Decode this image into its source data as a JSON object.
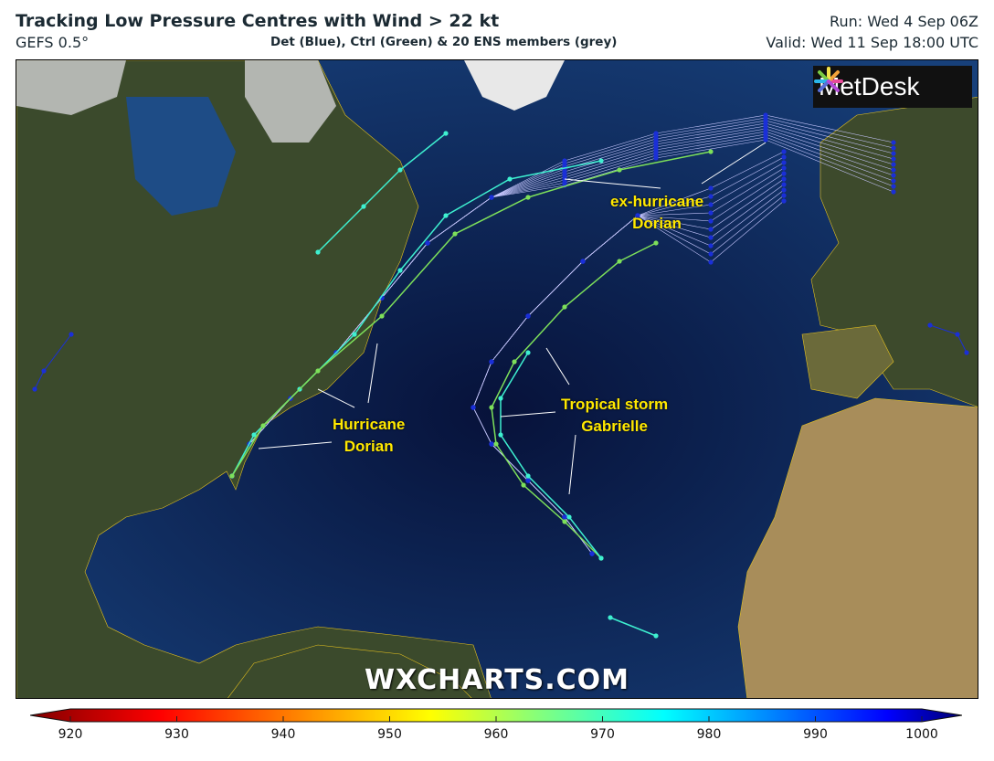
{
  "header": {
    "title": "Tracking Low Pressure Centres with Wind > 22 kt",
    "model": "GEFS 0.5°",
    "subtitle": "Det (Blue), Ctrl (Green) & 20 ENS members (grey)",
    "run": "Run: Wed 4 Sep 06Z",
    "valid": "Valid: Wed 11 Sep 18:00 UTC"
  },
  "map": {
    "annotations": [
      {
        "line1": "ex-hurricane",
        "line2": "Dorian"
      },
      {
        "line1": "Hurricane",
        "line2": "Dorian"
      },
      {
        "line1": "Tropical storm",
        "line2": "Gabrielle"
      }
    ],
    "logo": "MetDesk",
    "watermark": "WXCHARTS.COM",
    "colors": {
      "ocean": "#0a1a4a",
      "land": "#3d4a2a",
      "desert": "#a88d5a",
      "ice": "#d8d8d8",
      "borders": "#e6c21f",
      "label": "#ffe800"
    }
  },
  "colorbar": {
    "ticks": [
      "920",
      "930",
      "940",
      "950",
      "960",
      "970",
      "980",
      "990",
      "1000"
    ],
    "colors": [
      "#800000",
      "#ff0000",
      "#ff8000",
      "#ffff00",
      "#80ff80",
      "#00ffff",
      "#0080ff",
      "#0000ff",
      "#000080"
    ]
  }
}
